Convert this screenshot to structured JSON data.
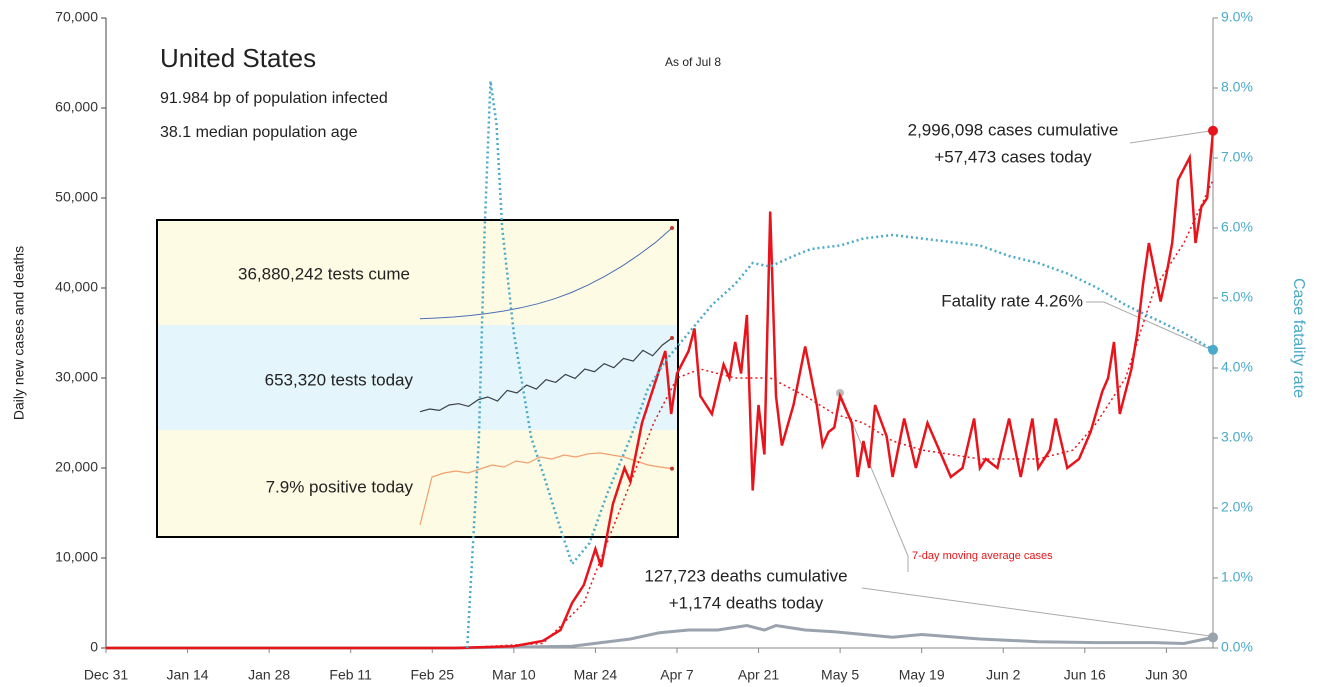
{
  "chart_data": {
    "type": "line",
    "title": "United States",
    "subtitle": [
      "91.984 bp of population infected",
      "38.1 median population age"
    ],
    "date_note": "As of Jul 8",
    "ylabel": "Daily new cases and deaths",
    "y2label": "Case fatality rate",
    "xlim": [
      0,
      190
    ],
    "xticks": [
      {
        "value": 0,
        "label": "Dec 31"
      },
      {
        "value": 14,
        "label": "Jan 14"
      },
      {
        "value": 28,
        "label": "Jan 28"
      },
      {
        "value": 42,
        "label": "Feb 11"
      },
      {
        "value": 56,
        "label": "Feb 25"
      },
      {
        "value": 70,
        "label": "Mar 10"
      },
      {
        "value": 84,
        "label": "Mar 24"
      },
      {
        "value": 98,
        "label": "Apr 7"
      },
      {
        "value": 112,
        "label": "Apr 21"
      },
      {
        "value": 126,
        "label": "May 5"
      },
      {
        "value": 140,
        "label": "May 19"
      },
      {
        "value": 154,
        "label": "Jun 2"
      },
      {
        "value": 168,
        "label": "Jun 16"
      },
      {
        "value": 182,
        "label": "Jun 30"
      }
    ],
    "ylim": [
      0,
      70000
    ],
    "yticks": [
      0,
      {
        "value": 10000,
        "label": "10,000"
      },
      {
        "value": 20000,
        "label": "20,000"
      },
      {
        "value": 30000,
        "label": "30,000"
      },
      {
        "value": 40000,
        "label": "40,000"
      },
      {
        "value": 50000,
        "label": "50,000"
      },
      {
        "value": 60000,
        "label": "60,000"
      },
      {
        "value": 70000,
        "label": "70,000"
      }
    ],
    "y2lim": [
      0,
      9
    ],
    "y2ticks": [
      {
        "value": 0,
        "label": "0.0%"
      },
      {
        "value": 1,
        "label": "1.0%"
      },
      {
        "value": 2,
        "label": "2.0%"
      },
      {
        "value": 3,
        "label": "3.0%"
      },
      {
        "value": 4,
        "label": "4.0%"
      },
      {
        "value": 5,
        "label": "5.0%"
      },
      {
        "value": 6,
        "label": "6.0%"
      },
      {
        "value": 7,
        "label": "7.0%"
      },
      {
        "value": 8,
        "label": "8.0%"
      },
      {
        "value": 9,
        "label": "9.0%"
      }
    ],
    "series": [
      {
        "color": "#9aa3ad",
        "style": "solid",
        "width": 3,
        "x": [
          0,
          60,
          80,
          90,
          95,
          100,
          105,
          110,
          113,
          115,
          120,
          125,
          130,
          135,
          140,
          150,
          160,
          170,
          180,
          185,
          190
        ],
        "values": [
          0,
          0,
          200,
          1000,
          1700,
          2000,
          2000,
          2500,
          2000,
          2500,
          2000,
          1800,
          1500,
          1200,
          1500,
          1000,
          700,
          600,
          600,
          500,
          1174
        ]
      },
      {
        "color": "#e8141b",
        "style": "dotted",
        "width": 1.5,
        "x": [
          60,
          75,
          82,
          88,
          94,
          98,
          102,
          108,
          114,
          120,
          125,
          130,
          135,
          140,
          150,
          160,
          166,
          170,
          175,
          180,
          185,
          190
        ],
        "values": [
          0,
          500,
          5000,
          15000,
          25000,
          30000,
          31000,
          30000,
          30000,
          28000,
          26000,
          25000,
          23000,
          22000,
          21000,
          21000,
          22000,
          25000,
          30000,
          40000,
          45000,
          52000
        ]
      },
      {
        "color": "#e8141b",
        "style": "solid",
        "width": 2.5,
        "x": [
          0,
          60,
          70,
          75,
          78,
          80,
          82,
          84,
          85,
          87,
          89,
          90,
          92,
          94,
          96,
          97,
          98,
          100,
          101,
          102,
          104,
          106,
          107,
          108,
          109,
          110,
          111,
          112,
          113,
          114,
          115,
          116,
          118,
          120,
          122,
          123,
          124,
          125,
          126,
          128,
          129,
          130,
          131,
          132,
          134,
          135,
          137,
          139,
          141,
          143,
          145,
          147,
          149,
          150,
          151,
          153,
          155,
          157,
          159,
          160,
          162,
          163,
          165,
          167,
          169,
          171,
          172,
          173,
          174,
          176,
          177,
          178,
          179,
          181,
          182,
          183,
          184,
          186,
          187,
          188,
          189,
          190
        ],
        "values": [
          0,
          0,
          200,
          800,
          2000,
          5000,
          7000,
          11000,
          9000,
          16000,
          20000,
          18500,
          25000,
          29000,
          33000,
          26000,
          30500,
          33000,
          35500,
          28000,
          26000,
          31500,
          30000,
          34000,
          30500,
          37000,
          17500,
          27000,
          21500,
          48500,
          28000,
          22500,
          27000,
          33500,
          27000,
          22500,
          24000,
          24500,
          28000,
          25000,
          19000,
          23000,
          20000,
          27000,
          23500,
          19000,
          25500,
          20000,
          25000,
          22000,
          19000,
          20000,
          25500,
          20000,
          21000,
          20000,
          25500,
          19000,
          25500,
          20000,
          22000,
          25500,
          20000,
          21000,
          24000,
          28500,
          30000,
          34000,
          26000,
          31000,
          35000,
          40500,
          45000,
          38500,
          41500,
          45000,
          52000,
          54500,
          45000,
          49000,
          50000,
          57473
        ]
      },
      {
        "color": "#4aaac8",
        "style": "dotted",
        "width": 2.5,
        "axis": "y2",
        "x": [
          62,
          64,
          65,
          66,
          67,
          68,
          70,
          73,
          75,
          78,
          80,
          83,
          86,
          90,
          93,
          96,
          100,
          104,
          108,
          111,
          114,
          118,
          121,
          126,
          130,
          135,
          140,
          145,
          150,
          155,
          160,
          165,
          170,
          175,
          180,
          185,
          190
        ],
        "values": [
          0,
          3,
          6,
          8.1,
          7.5,
          6,
          4.5,
          3,
          2.5,
          1.7,
          1.2,
          1.5,
          2.2,
          3,
          3.7,
          4.1,
          4.5,
          4.9,
          5.2,
          5.5,
          5.45,
          5.6,
          5.7,
          5.75,
          5.85,
          5.9,
          5.85,
          5.8,
          5.75,
          5.6,
          5.5,
          5.35,
          5.15,
          4.9,
          4.7,
          4.5,
          4.26
        ]
      }
    ],
    "annotations": {
      "cases": [
        "2,996,098 cases cumulative",
        "+57,473 cases today"
      ],
      "fatality": "Fatality rate 4.26%",
      "deaths": [
        "127,723 deaths cumulative",
        "+1,174 deaths today"
      ],
      "moving_average": "7-day moving average cases"
    },
    "inset": {
      "labels": [
        "36,880,242 tests cume",
        "653,320 tests today",
        "7.9% positive today"
      ],
      "colors": [
        "#4a6fb5",
        "#3a4048",
        "#f0a070"
      ],
      "tests_cume": [
        500000,
        800000,
        1200000,
        1800000,
        2600000,
        3600000,
        4900000,
        6500000,
        8500000,
        11000000,
        14000000,
        17500000,
        21500000,
        26000000,
        31000000,
        36880242
      ],
      "tests_daily": [
        100000,
        120000,
        110000,
        150000,
        160000,
        140000,
        190000,
        210000,
        180000,
        260000,
        240000,
        300000,
        270000,
        340000,
        320000,
        380000,
        350000,
        420000,
        400000,
        460000,
        430000,
        500000,
        480000,
        560000,
        520000,
        600000,
        653320
      ],
      "positive_rate": [
        22,
        10,
        9,
        8.5,
        9,
        8,
        7,
        7.5,
        6,
        6.5,
        5,
        5.5,
        4.5,
        5,
        4.2,
        4,
        4.5,
        5,
        6,
        7,
        7.5,
        7.9
      ]
    }
  }
}
